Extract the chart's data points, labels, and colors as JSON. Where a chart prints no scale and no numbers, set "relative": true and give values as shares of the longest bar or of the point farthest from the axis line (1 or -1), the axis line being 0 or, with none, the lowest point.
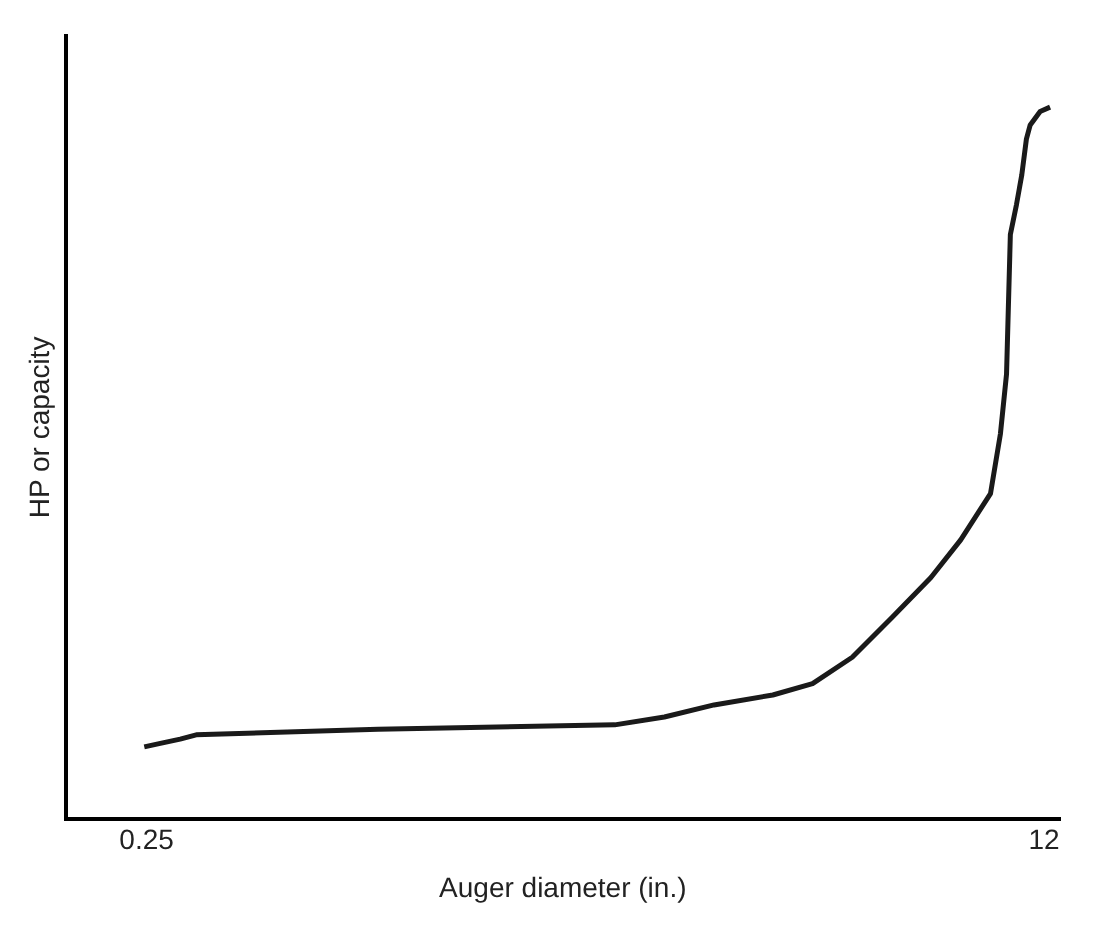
{
  "chart_data": {
    "type": "line",
    "xlabel": "Auger diameter (in.)",
    "ylabel": "HP or capacity",
    "relative": true,
    "xlim": [
      -0.81,
      12.21
    ],
    "xticks": [
      0.25,
      12
    ],
    "grid": false,
    "legend": false,
    "marker": "none",
    "series": [
      {
        "color": "#1a1a1a",
        "x": [
          0.22,
          0.43,
          0.69,
          0.9,
          3.28,
          6.38,
          7.03,
          7.68,
          8.45,
          8.97,
          9.49,
          10.01,
          10.52,
          10.91,
          11.3,
          11.43,
          11.51,
          11.56,
          11.64,
          11.71,
          11.77,
          11.82,
          11.95,
          12.08
        ],
        "values": [
          0.101,
          0.106,
          0.112,
          0.118,
          0.126,
          0.132,
          0.143,
          0.16,
          0.174,
          0.19,
          0.227,
          0.283,
          0.339,
          0.392,
          0.457,
          0.541,
          0.625,
          0.821,
          0.863,
          0.905,
          0.955,
          0.975,
          0.994,
          1
        ]
      }
    ]
  }
}
